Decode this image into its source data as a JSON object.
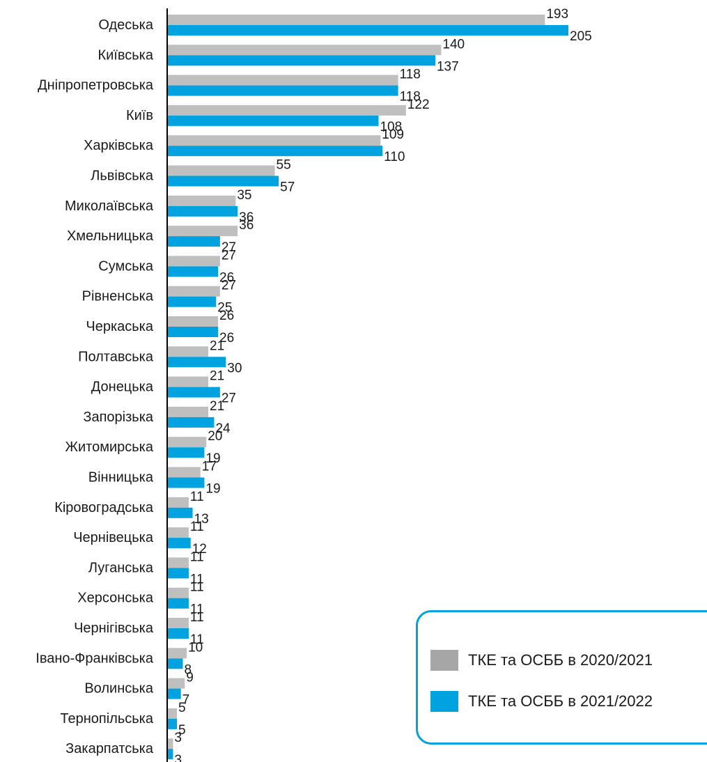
{
  "chart_data": {
    "type": "bar",
    "orientation": "horizontal",
    "title": "",
    "xlabel": "",
    "ylabel": "",
    "categories": [
      "Одеська",
      "Київська",
      "Дніпропетровська",
      "Київ",
      "Харківська",
      "Львівська",
      "Миколаївська",
      "Хмельницька",
      "Сумська",
      "Рівненська",
      "Черкаська",
      "Полтавська",
      "Донецька",
      "Запорізька",
      "Житомирська",
      "Вінницька",
      "Кіровоградська",
      "Чернівецька",
      "Луганська",
      "Херсонська",
      "Чернігівська",
      "Івано-Франківська",
      "Волинська",
      "Тернопільська",
      "Закарпатська"
    ],
    "series": [
      {
        "name": "ТКЕ та ОСББ  в 2020/2021",
        "color": "#bfbfbf",
        "values": [
          193,
          140,
          118,
          122,
          109,
          55,
          35,
          36,
          27,
          27,
          26,
          21,
          21,
          21,
          20,
          17,
          11,
          11,
          11,
          11,
          11,
          10,
          9,
          5,
          3
        ]
      },
      {
        "name": "ТКЕ та ОСББ в 2021/2022",
        "color": "#00a2e0",
        "values": [
          205,
          137,
          118,
          108,
          110,
          57,
          36,
          27,
          26,
          25,
          26,
          30,
          27,
          24,
          19,
          19,
          13,
          12,
          11,
          11,
          11,
          8,
          7,
          5,
          3
        ]
      }
    ],
    "xlim": [
      0,
      235
    ],
    "grid": false,
    "legend_position": "bottom-right"
  },
  "legend": {
    "items": [
      {
        "label": "ТКЕ та ОСББ  в 2020/2021",
        "color": "#a6a6a6"
      },
      {
        "label": "ТКЕ та ОСББ в 2021/2022",
        "color": "#00a2e0"
      }
    ]
  }
}
